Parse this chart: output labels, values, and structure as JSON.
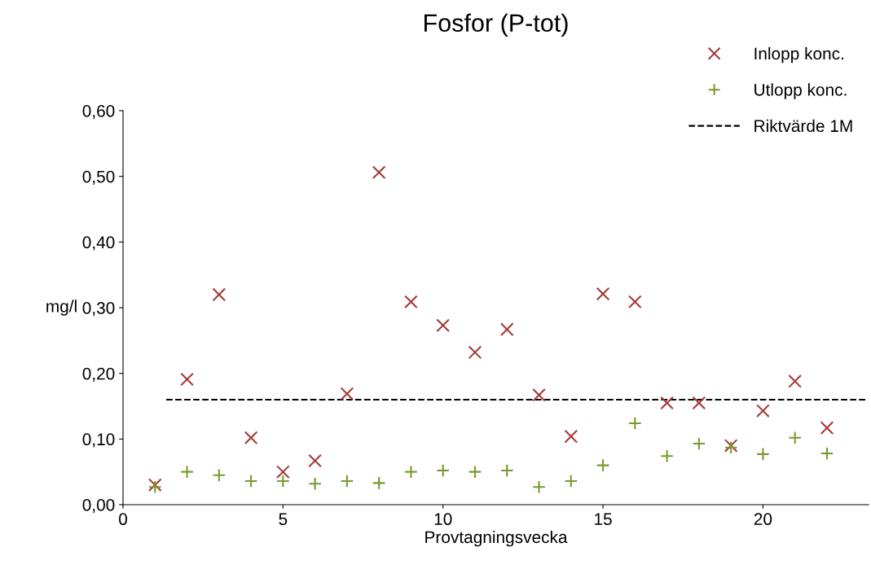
{
  "chart_data": {
    "type": "scatter",
    "title": "Fosfor (P-tot)",
    "xlabel": "Provtagningsvecka",
    "ylabel": "mg/l",
    "x": [
      1,
      2,
      3,
      4,
      5,
      6,
      7,
      8,
      9,
      10,
      11,
      12,
      13,
      14,
      15,
      16,
      17,
      18,
      19,
      20,
      21,
      22
    ],
    "series": [
      {
        "name": "Inlopp konc.",
        "color": "#a33a3a",
        "marker": "cross",
        "values": [
          0.03,
          0.191,
          0.32,
          0.102,
          0.05,
          0.067,
          0.169,
          0.506,
          0.309,
          0.273,
          0.232,
          0.267,
          0.167,
          0.104,
          0.321,
          0.309,
          0.155,
          0.155,
          0.09,
          0.143,
          0.188,
          0.117
        ]
      },
      {
        "name": "Utlopp konc.",
        "color": "#7a9a2e",
        "marker": "plus",
        "values": [
          0.027,
          0.05,
          0.045,
          0.036,
          0.036,
          0.032,
          0.036,
          0.033,
          0.05,
          0.052,
          0.05,
          0.052,
          0.027,
          0.036,
          0.06,
          0.124,
          0.074,
          0.093,
          0.087,
          0.077,
          0.102,
          0.078
        ]
      },
      {
        "name": "Riktvärde 1M",
        "type": "line",
        "color": "#000000",
        "line_style": "dashed",
        "marker": "none",
        "x": [
          1.35,
          23.2
        ],
        "values": [
          0.16,
          0.16
        ]
      }
    ],
    "xlim": [
      0,
      23.3
    ],
    "xticks": [
      0,
      5,
      10,
      15,
      20
    ],
    "ylim": [
      0,
      0.6
    ],
    "yticks": [
      {
        "value": 0,
        "label": "0,00"
      },
      {
        "value": 0.1,
        "label": "0,10"
      },
      {
        "value": 0.2,
        "label": "0,20"
      },
      {
        "value": 0.3,
        "label": "0,30"
      },
      {
        "value": 0.4,
        "label": "0,40"
      },
      {
        "value": 0.5,
        "label": "0,50"
      },
      {
        "value": 0.6,
        "label": "0,60"
      }
    ],
    "grid": false,
    "legend": "top right"
  }
}
